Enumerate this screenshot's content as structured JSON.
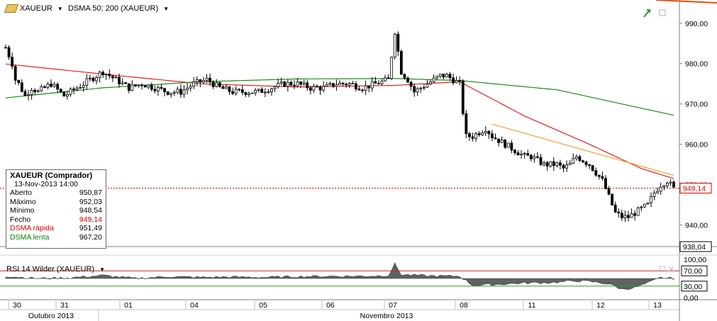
{
  "header": {
    "symbol": "XAUEUR",
    "indicator": "DSMA 50; 200 (XAUEUR)"
  },
  "rsi_panel": {
    "title": "RSI 14 Wilder (XAUEUR)"
  },
  "info_box": {
    "title": "XAUEUR (Comprador)",
    "datetime": "13-Nov-2013 14:00",
    "rows": [
      {
        "label": "Aberto",
        "value": "950,87"
      },
      {
        "label": "Máximo",
        "value": "952,03"
      },
      {
        "label": "Mínimo",
        "value": "948,54"
      },
      {
        "label": "Fecho",
        "value": "949,14"
      },
      {
        "label": "DSMA rápida",
        "value": "951,49"
      },
      {
        "label": "DSMA lenta",
        "value": "967,20"
      }
    ]
  },
  "colors": {
    "fast_ma": "#e02020",
    "slow_ma": "#1a8a1a",
    "trend": "#f0a030",
    "rsi_fill": "#5f6360",
    "current": "#d40000"
  },
  "chart_data": [
    {
      "type": "candlestick",
      "title": "",
      "ylim": [
        935,
        994
      ],
      "y_ticks": [
        "940,00",
        "950,00",
        "960,00",
        "970,00",
        "980,00",
        "990,00"
      ],
      "current_label": "949,14",
      "last_label": "938,04",
      "x_day_labels": [
        "30",
        "31",
        "01",
        "04",
        "05",
        "06",
        "07",
        "08",
        "11",
        "12",
        "13"
      ],
      "x_month_labels": [
        "Outubro 2013",
        "Novembro 2013"
      ],
      "close_path": [
        [
          0,
          984
        ],
        [
          1,
          982
        ],
        [
          2,
          980
        ],
        [
          3,
          976
        ],
        [
          4,
          975
        ],
        [
          6,
          972
        ],
        [
          8,
          974
        ],
        [
          10,
          973
        ],
        [
          14,
          975
        ],
        [
          18,
          972
        ],
        [
          22,
          974
        ],
        [
          26,
          976
        ],
        [
          30,
          978
        ],
        [
          34,
          976
        ],
        [
          38,
          974
        ],
        [
          42,
          975
        ],
        [
          46,
          974
        ],
        [
          50,
          973
        ],
        [
          54,
          973
        ],
        [
          58,
          975
        ],
        [
          62,
          976
        ],
        [
          66,
          974
        ],
        [
          70,
          973
        ],
        [
          74,
          973
        ],
        [
          78,
          973
        ],
        [
          82,
          974
        ],
        [
          86,
          975
        ],
        [
          90,
          975
        ],
        [
          94,
          974
        ],
        [
          98,
          974
        ],
        [
          102,
          975
        ],
        [
          106,
          975
        ],
        [
          110,
          974
        ],
        [
          114,
          975
        ],
        [
          118,
          976
        ],
        [
          120,
          988
        ],
        [
          121,
          983
        ],
        [
          122,
          978
        ],
        [
          124,
          976
        ],
        [
          126,
          973
        ],
        [
          128,
          974
        ],
        [
          130,
          975
        ],
        [
          132,
          976
        ],
        [
          134,
          977
        ],
        [
          136,
          977
        ],
        [
          138,
          976
        ],
        [
          140,
          975
        ],
        [
          141,
          968
        ],
        [
          142,
          962
        ],
        [
          144,
          962
        ],
        [
          146,
          963
        ],
        [
          148,
          964
        ],
        [
          150,
          962
        ],
        [
          152,
          961
        ],
        [
          154,
          960
        ],
        [
          156,
          959
        ],
        [
          158,
          958
        ],
        [
          160,
          957
        ],
        [
          162,
          957
        ],
        [
          164,
          956
        ],
        [
          166,
          955
        ],
        [
          168,
          955
        ],
        [
          170,
          955
        ],
        [
          172,
          954
        ],
        [
          174,
          955
        ],
        [
          176,
          957
        ],
        [
          178,
          956
        ],
        [
          180,
          955
        ],
        [
          182,
          953
        ],
        [
          184,
          951
        ],
        [
          186,
          947
        ],
        [
          188,
          943
        ],
        [
          190,
          942
        ],
        [
          192,
          942
        ],
        [
          194,
          943
        ],
        [
          196,
          944
        ],
        [
          198,
          945
        ],
        [
          200,
          948
        ],
        [
          202,
          950
        ],
        [
          204,
          951
        ],
        [
          206,
          949
        ]
      ],
      "series": [
        {
          "name": "DSMA rápida",
          "points": [
            [
              0,
              979.9
            ],
            [
              30,
              977.4
            ],
            [
              60,
              975
            ],
            [
              90,
              974.2
            ],
            [
              120,
              974.6
            ],
            [
              140,
              975.5
            ],
            [
              160,
              967
            ],
            [
              180,
              960
            ],
            [
              196,
              954
            ],
            [
              206,
              951.5
            ]
          ]
        },
        {
          "name": "DSMA lenta",
          "points": [
            [
              0,
              971.5
            ],
            [
              30,
              974
            ],
            [
              60,
              975.5
            ],
            [
              90,
              976.2
            ],
            [
              120,
              976.3
            ],
            [
              140,
              975.8
            ],
            [
              170,
              973.5
            ],
            [
              190,
              970
            ],
            [
              206,
              967.2
            ]
          ]
        }
      ],
      "trend_line": [
        [
          150,
          965
        ],
        [
          206,
          952.3
        ]
      ]
    },
    {
      "type": "area",
      "title": "RSI 14 Wilder (XAUEUR)",
      "ylim": [
        0,
        100
      ],
      "y_ticks": [
        "0,00",
        "30,00",
        "70,00",
        "100,00"
      ],
      "levels": [
        30,
        70
      ],
      "values_path": [
        [
          0,
          56
        ],
        [
          10,
          50
        ],
        [
          20,
          52
        ],
        [
          30,
          58
        ],
        [
          40,
          50
        ],
        [
          50,
          55
        ],
        [
          60,
          53
        ],
        [
          70,
          54
        ],
        [
          80,
          53
        ],
        [
          90,
          55
        ],
        [
          100,
          56
        ],
        [
          110,
          56
        ],
        [
          118,
          58
        ],
        [
          120,
          88
        ],
        [
          122,
          60
        ],
        [
          130,
          57
        ],
        [
          140,
          56
        ],
        [
          144,
          32
        ],
        [
          150,
          34
        ],
        [
          160,
          38
        ],
        [
          170,
          40
        ],
        [
          176,
          44
        ],
        [
          180,
          42
        ],
        [
          186,
          36
        ],
        [
          190,
          22
        ],
        [
          194,
          26
        ],
        [
          198,
          38
        ],
        [
          202,
          52
        ],
        [
          206,
          50
        ]
      ]
    }
  ]
}
